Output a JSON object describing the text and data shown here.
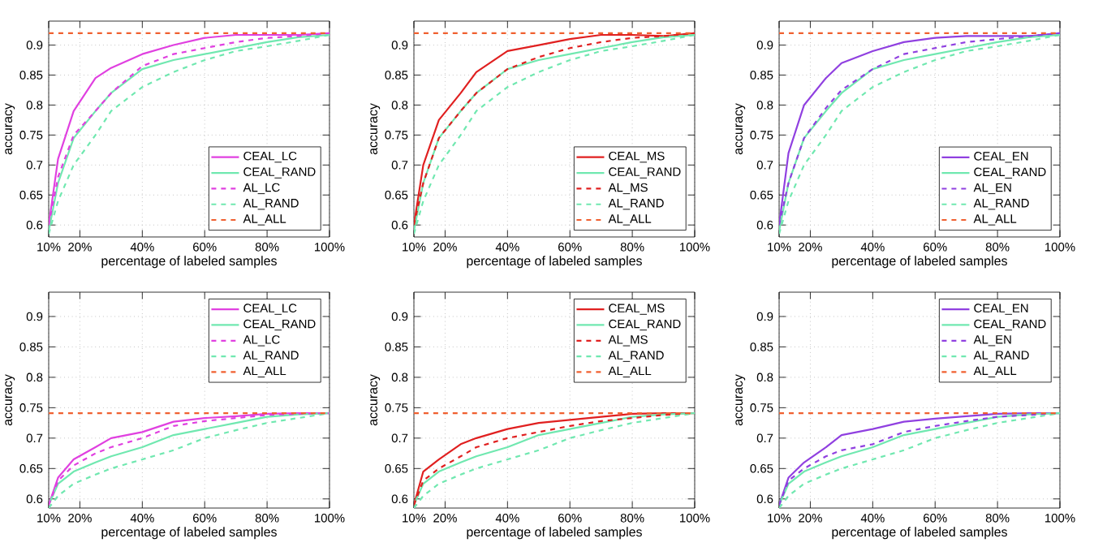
{
  "chart_data": [
    {
      "type": "line",
      "xlabel": "percentage of labeled samples",
      "ylabel": "accuracy",
      "xlim": [
        10,
        100
      ],
      "ylim": [
        0.58,
        0.94
      ],
      "xticks": [
        {
          "value": 10,
          "label": "10%"
        },
        {
          "value": 20,
          "label": "20%"
        },
        {
          "value": 40,
          "label": "40%"
        },
        {
          "value": 60,
          "label": "60%"
        },
        {
          "value": 80,
          "label": "80%"
        },
        {
          "value": 100,
          "label": "100%"
        }
      ],
      "yticks": [
        0.6,
        0.65,
        0.7,
        0.75,
        0.8,
        0.85,
        0.9
      ],
      "grid": true,
      "legend": "bottom right",
      "x": [
        10,
        13,
        18,
        25,
        30,
        40,
        50,
        60,
        70,
        80,
        90,
        100
      ],
      "series": [
        {
          "name": "CEAL_LC",
          "color": "#e040e0",
          "line_style": "solid",
          "values": [
            0.6,
            0.71,
            0.79,
            0.845,
            0.862,
            0.885,
            0.9,
            0.912,
            0.917,
            0.917,
            0.917,
            0.92
          ]
        },
        {
          "name": "CEAL_RAND",
          "color": "#70e8b0",
          "line_style": "solid",
          "values": [
            0.59,
            0.67,
            0.745,
            0.79,
            0.82,
            0.86,
            0.875,
            0.885,
            0.895,
            0.905,
            0.913,
            0.917
          ]
        },
        {
          "name": "AL_LC",
          "color": "#e040e0",
          "line_style": "dashed",
          "values": [
            0.6,
            0.68,
            0.75,
            0.79,
            0.82,
            0.865,
            0.885,
            0.895,
            0.905,
            0.912,
            0.915,
            0.92
          ]
        },
        {
          "name": "AL_RAND",
          "color": "#70e8b0",
          "line_style": "dashed",
          "values": [
            0.585,
            0.64,
            0.7,
            0.75,
            0.79,
            0.83,
            0.855,
            0.875,
            0.89,
            0.898,
            0.907,
            0.917
          ]
        },
        {
          "name": "AL_ALL",
          "color": "#f06030",
          "line_style": "dashed",
          "values": [
            0.92,
            0.92,
            0.92,
            0.92,
            0.92,
            0.92,
            0.92,
            0.92,
            0.92,
            0.92,
            0.92,
            0.92
          ]
        }
      ]
    },
    {
      "type": "line",
      "xlabel": "percentage of labeled samples",
      "ylabel": "accuracy",
      "xlim": [
        10,
        100
      ],
      "ylim": [
        0.58,
        0.94
      ],
      "xticks": [
        {
          "value": 10,
          "label": "10%"
        },
        {
          "value": 20,
          "label": "20%"
        },
        {
          "value": 40,
          "label": "40%"
        },
        {
          "value": 60,
          "label": "60%"
        },
        {
          "value": 80,
          "label": "80%"
        },
        {
          "value": 100,
          "label": "100%"
        }
      ],
      "yticks": [
        0.6,
        0.65,
        0.7,
        0.75,
        0.8,
        0.85,
        0.9
      ],
      "grid": true,
      "legend": "bottom right",
      "x": [
        10,
        13,
        18,
        25,
        30,
        40,
        50,
        60,
        70,
        80,
        90,
        100
      ],
      "series": [
        {
          "name": "CEAL_MS",
          "color": "#e02020",
          "line_style": "solid",
          "values": [
            0.6,
            0.7,
            0.775,
            0.82,
            0.855,
            0.89,
            0.9,
            0.91,
            0.917,
            0.917,
            0.915,
            0.92
          ]
        },
        {
          "name": "CEAL_RAND",
          "color": "#70e8b0",
          "line_style": "solid",
          "values": [
            0.59,
            0.67,
            0.745,
            0.79,
            0.82,
            0.86,
            0.875,
            0.885,
            0.895,
            0.905,
            0.913,
            0.917
          ]
        },
        {
          "name": "AL_MS",
          "color": "#e02020",
          "line_style": "dashed",
          "values": [
            0.6,
            0.67,
            0.745,
            0.79,
            0.82,
            0.86,
            0.88,
            0.895,
            0.905,
            0.912,
            0.915,
            0.92
          ]
        },
        {
          "name": "AL_RAND",
          "color": "#70e8b0",
          "line_style": "dashed",
          "values": [
            0.585,
            0.64,
            0.7,
            0.75,
            0.79,
            0.83,
            0.855,
            0.875,
            0.89,
            0.898,
            0.907,
            0.917
          ]
        },
        {
          "name": "AL_ALL",
          "color": "#f06030",
          "line_style": "dashed",
          "values": [
            0.92,
            0.92,
            0.92,
            0.92,
            0.92,
            0.92,
            0.92,
            0.92,
            0.92,
            0.92,
            0.92,
            0.92
          ]
        }
      ]
    },
    {
      "type": "line",
      "xlabel": "percentage of labeled samples",
      "ylabel": "accuracy",
      "xlim": [
        10,
        100
      ],
      "ylim": [
        0.58,
        0.94
      ],
      "xticks": [
        {
          "value": 10,
          "label": "10%"
        },
        {
          "value": 20,
          "label": "20%"
        },
        {
          "value": 40,
          "label": "40%"
        },
        {
          "value": 60,
          "label": "60%"
        },
        {
          "value": 80,
          "label": "80%"
        },
        {
          "value": 100,
          "label": "100%"
        }
      ],
      "yticks": [
        0.6,
        0.65,
        0.7,
        0.75,
        0.8,
        0.85,
        0.9
      ],
      "grid": true,
      "legend": "bottom right",
      "x": [
        10,
        13,
        18,
        25,
        30,
        40,
        50,
        60,
        70,
        80,
        90,
        100
      ],
      "series": [
        {
          "name": "CEAL_EN",
          "color": "#9040e0",
          "line_style": "solid",
          "values": [
            0.6,
            0.72,
            0.8,
            0.845,
            0.87,
            0.89,
            0.905,
            0.912,
            0.915,
            0.915,
            0.915,
            0.92
          ]
        },
        {
          "name": "CEAL_RAND",
          "color": "#70e8b0",
          "line_style": "solid",
          "values": [
            0.59,
            0.67,
            0.745,
            0.79,
            0.82,
            0.86,
            0.875,
            0.885,
            0.895,
            0.905,
            0.913,
            0.917
          ]
        },
        {
          "name": "AL_EN",
          "color": "#9040e0",
          "line_style": "dashed",
          "values": [
            0.6,
            0.67,
            0.745,
            0.795,
            0.825,
            0.86,
            0.885,
            0.895,
            0.905,
            0.91,
            0.915,
            0.92
          ]
        },
        {
          "name": "AL_RAND",
          "color": "#70e8b0",
          "line_style": "dashed",
          "values": [
            0.585,
            0.64,
            0.7,
            0.75,
            0.79,
            0.83,
            0.855,
            0.875,
            0.89,
            0.898,
            0.907,
            0.917
          ]
        },
        {
          "name": "AL_ALL",
          "color": "#f06030",
          "line_style": "dashed",
          "values": [
            0.92,
            0.92,
            0.92,
            0.92,
            0.92,
            0.92,
            0.92,
            0.92,
            0.92,
            0.92,
            0.92,
            0.92
          ]
        }
      ]
    },
    {
      "type": "line",
      "xlabel": "percentage of labeled samples",
      "ylabel": "accuracy",
      "xlim": [
        10,
        100
      ],
      "ylim": [
        0.585,
        0.94
      ],
      "xticks": [
        {
          "value": 10,
          "label": "10%"
        },
        {
          "value": 20,
          "label": "20%"
        },
        {
          "value": 40,
          "label": "40%"
        },
        {
          "value": 60,
          "label": "60%"
        },
        {
          "value": 80,
          "label": "80%"
        },
        {
          "value": 100,
          "label": "100%"
        }
      ],
      "yticks": [
        0.6,
        0.65,
        0.7,
        0.75,
        0.8,
        0.85,
        0.9
      ],
      "grid": true,
      "legend": "top right",
      "x": [
        10,
        13,
        18,
        25,
        30,
        40,
        50,
        60,
        70,
        80,
        90,
        100
      ],
      "series": [
        {
          "name": "CEAL_LC",
          "color": "#e040e0",
          "line_style": "solid",
          "values": [
            0.59,
            0.635,
            0.665,
            0.685,
            0.7,
            0.71,
            0.727,
            0.733,
            0.736,
            0.74,
            0.741,
            0.741
          ]
        },
        {
          "name": "CEAL_RAND",
          "color": "#70e8b0",
          "line_style": "solid",
          "values": [
            0.59,
            0.625,
            0.645,
            0.66,
            0.67,
            0.685,
            0.705,
            0.715,
            0.725,
            0.735,
            0.739,
            0.741
          ]
        },
        {
          "name": "AL_LC",
          "color": "#e040e0",
          "line_style": "dashed",
          "values": [
            0.59,
            0.63,
            0.655,
            0.675,
            0.685,
            0.7,
            0.72,
            0.728,
            0.733,
            0.738,
            0.74,
            0.741
          ]
        },
        {
          "name": "AL_RAND",
          "color": "#70e8b0",
          "line_style": "dashed",
          "values": [
            0.585,
            0.605,
            0.625,
            0.64,
            0.65,
            0.665,
            0.68,
            0.7,
            0.713,
            0.725,
            0.733,
            0.741
          ]
        },
        {
          "name": "AL_ALL",
          "color": "#f06030",
          "line_style": "dashed",
          "values": [
            0.741,
            0.741,
            0.741,
            0.741,
            0.741,
            0.741,
            0.741,
            0.741,
            0.741,
            0.741,
            0.741,
            0.741
          ]
        }
      ]
    },
    {
      "type": "line",
      "xlabel": "percentage of labeled samples",
      "ylabel": "accuracy",
      "xlim": [
        10,
        100
      ],
      "ylim": [
        0.585,
        0.94
      ],
      "xticks": [
        {
          "value": 10,
          "label": "10%"
        },
        {
          "value": 20,
          "label": "20%"
        },
        {
          "value": 40,
          "label": "40%"
        },
        {
          "value": 60,
          "label": "60%"
        },
        {
          "value": 80,
          "label": "80%"
        },
        {
          "value": 100,
          "label": "100%"
        }
      ],
      "yticks": [
        0.6,
        0.65,
        0.7,
        0.75,
        0.8,
        0.85,
        0.9
      ],
      "grid": true,
      "legend": "top right",
      "x": [
        10,
        13,
        18,
        25,
        30,
        40,
        50,
        60,
        70,
        80,
        90,
        100
      ],
      "series": [
        {
          "name": "CEAL_MS",
          "color": "#e02020",
          "line_style": "solid",
          "values": [
            0.59,
            0.645,
            0.665,
            0.69,
            0.7,
            0.715,
            0.725,
            0.73,
            0.735,
            0.74,
            0.741,
            0.741
          ]
        },
        {
          "name": "CEAL_RAND",
          "color": "#70e8b0",
          "line_style": "solid",
          "values": [
            0.59,
            0.625,
            0.645,
            0.66,
            0.67,
            0.685,
            0.705,
            0.715,
            0.725,
            0.735,
            0.739,
            0.741
          ]
        },
        {
          "name": "AL_MS",
          "color": "#e02020",
          "line_style": "dashed",
          "values": [
            0.59,
            0.63,
            0.65,
            0.67,
            0.685,
            0.7,
            0.71,
            0.72,
            0.728,
            0.733,
            0.738,
            0.741
          ]
        },
        {
          "name": "AL_RAND",
          "color": "#70e8b0",
          "line_style": "dashed",
          "values": [
            0.585,
            0.605,
            0.625,
            0.64,
            0.65,
            0.665,
            0.68,
            0.7,
            0.713,
            0.725,
            0.733,
            0.741
          ]
        },
        {
          "name": "AL_ALL",
          "color": "#f06030",
          "line_style": "dashed",
          "values": [
            0.741,
            0.741,
            0.741,
            0.741,
            0.741,
            0.741,
            0.741,
            0.741,
            0.741,
            0.741,
            0.741,
            0.741
          ]
        }
      ]
    },
    {
      "type": "line",
      "xlabel": "percentage of labeled samples",
      "ylabel": "accuracy",
      "xlim": [
        10,
        100
      ],
      "ylim": [
        0.585,
        0.94
      ],
      "xticks": [
        {
          "value": 10,
          "label": "10%"
        },
        {
          "value": 20,
          "label": "20%"
        },
        {
          "value": 40,
          "label": "40%"
        },
        {
          "value": 60,
          "label": "60%"
        },
        {
          "value": 80,
          "label": "80%"
        },
        {
          "value": 100,
          "label": "100%"
        }
      ],
      "yticks": [
        0.6,
        0.65,
        0.7,
        0.75,
        0.8,
        0.85,
        0.9
      ],
      "grid": true,
      "legend": "top right",
      "x": [
        10,
        13,
        18,
        25,
        30,
        40,
        50,
        60,
        70,
        80,
        90,
        100
      ],
      "series": [
        {
          "name": "CEAL_EN",
          "color": "#9040e0",
          "line_style": "solid",
          "values": [
            0.59,
            0.635,
            0.66,
            0.685,
            0.705,
            0.715,
            0.727,
            0.732,
            0.736,
            0.74,
            0.741,
            0.741
          ]
        },
        {
          "name": "CEAL_RAND",
          "color": "#70e8b0",
          "line_style": "solid",
          "values": [
            0.59,
            0.625,
            0.645,
            0.66,
            0.67,
            0.685,
            0.705,
            0.715,
            0.725,
            0.735,
            0.739,
            0.741
          ]
        },
        {
          "name": "AL_EN",
          "color": "#9040e0",
          "line_style": "dashed",
          "values": [
            0.59,
            0.63,
            0.65,
            0.67,
            0.68,
            0.69,
            0.71,
            0.72,
            0.728,
            0.735,
            0.738,
            0.741
          ]
        },
        {
          "name": "AL_RAND",
          "color": "#70e8b0",
          "line_style": "dashed",
          "values": [
            0.585,
            0.605,
            0.625,
            0.64,
            0.65,
            0.665,
            0.68,
            0.7,
            0.713,
            0.725,
            0.733,
            0.741
          ]
        },
        {
          "name": "AL_ALL",
          "color": "#f06030",
          "line_style": "dashed",
          "values": [
            0.741,
            0.741,
            0.741,
            0.741,
            0.741,
            0.741,
            0.741,
            0.741,
            0.741,
            0.741,
            0.741,
            0.741
          ]
        }
      ]
    }
  ]
}
